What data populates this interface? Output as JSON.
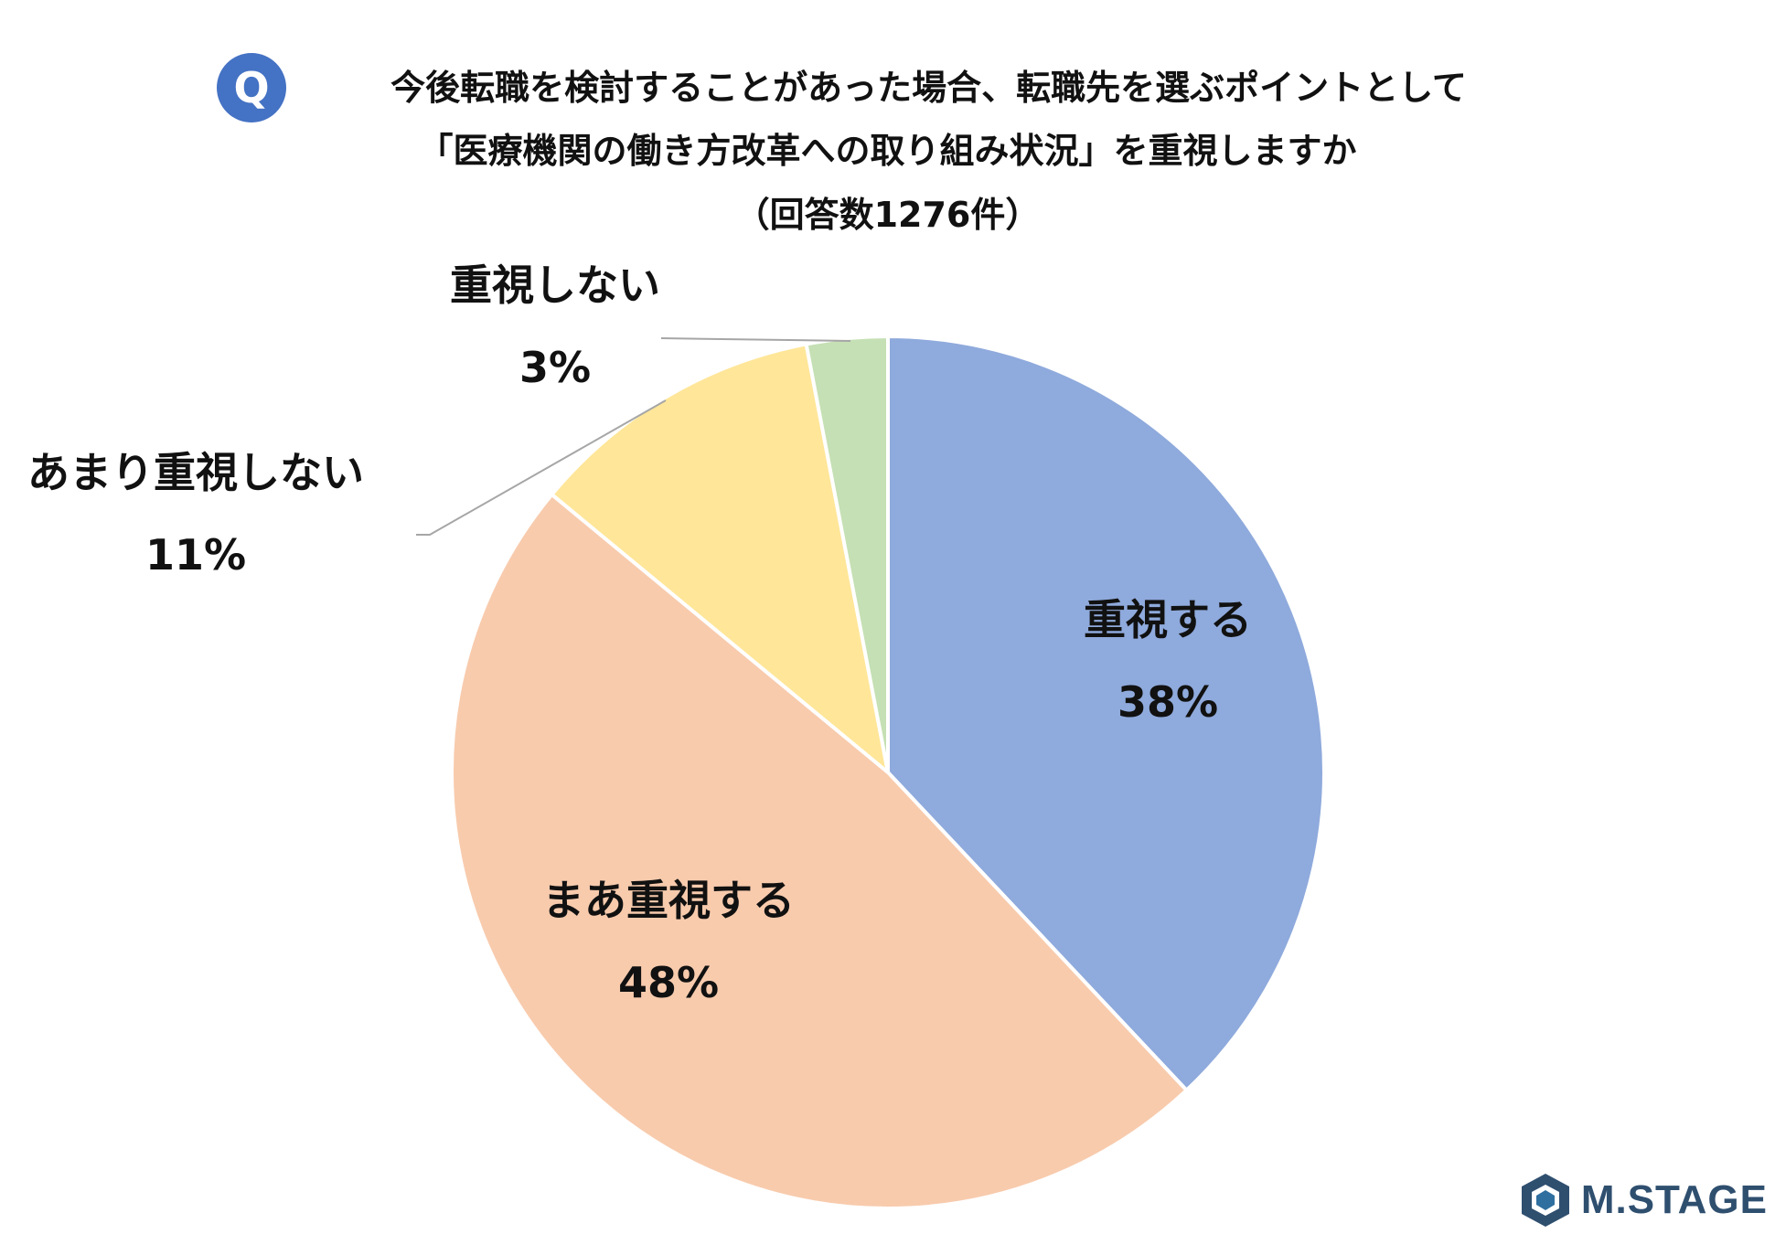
{
  "header": {
    "badge": "Q",
    "line1": "今後転職を検討することがあった場合、転職先を選ぶポイントとして",
    "line2": "「医療機関の働き方改革への取り組み状況」を重視しますか",
    "line3": "（回答数1276件）"
  },
  "logo": {
    "text": "M.STAGE",
    "icon": "hexagon-logo-icon"
  },
  "colors": {
    "s0": "#8faadc",
    "s1": "#f8cbad",
    "s2": "#ffe699",
    "s3": "#c5e0b4",
    "badge": "#4472c4"
  },
  "chart_data": {
    "type": "pie",
    "title": "今後転職を検討することがあった場合、転職先を選ぶポイントとして「医療機関の働き方改革への取り組み状況」を重視しますか",
    "subtitle": "（回答数1276件）",
    "slices": [
      {
        "label": "重視する",
        "value": 38,
        "display": "38%"
      },
      {
        "label": "まあ重視する",
        "value": 48,
        "display": "48%"
      },
      {
        "label": "あまり重視しない",
        "value": 11,
        "display": "11%"
      },
      {
        "label": "重視しない",
        "value": 3,
        "display": "3%"
      }
    ]
  }
}
